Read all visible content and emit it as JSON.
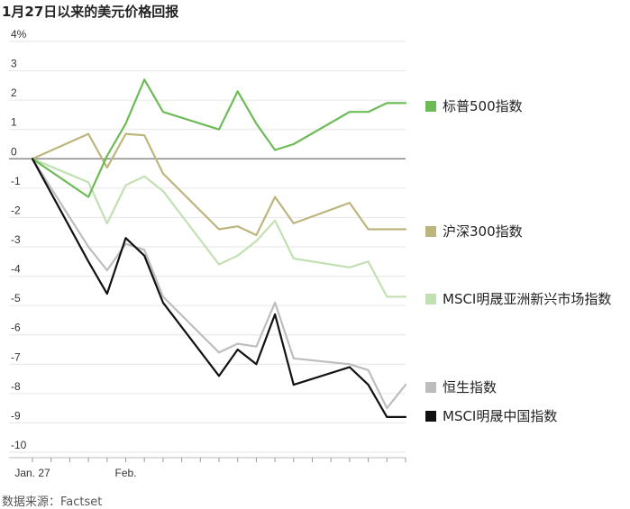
{
  "title": "1月27日以来的美元价格回报",
  "source": "数据来源：Factset",
  "chart_data": {
    "type": "line",
    "title": "1月27日以来的美元价格回报",
    "ylim": [
      -10,
      4
    ],
    "yticks": [
      4,
      3,
      2,
      1,
      0,
      -1,
      -2,
      -3,
      -4,
      -5,
      -6,
      -7,
      -8,
      -9,
      -10
    ],
    "ytick_labels": [
      "4%",
      "3",
      "2",
      "1",
      "0",
      "-1",
      "-2",
      "-3",
      "-4",
      "-5",
      "-6",
      "-7",
      "-8",
      "-9",
      "-10"
    ],
    "xticks": [
      0,
      1,
      2,
      3,
      4,
      5,
      6,
      7,
      8,
      9,
      10,
      11,
      12,
      13,
      14,
      15,
      16,
      17,
      18,
      19,
      20
    ],
    "xtick_labels": [
      {
        "index": 0,
        "label": "Jan. 27"
      },
      {
        "index": 5,
        "label": "Feb."
      }
    ],
    "x": [
      0,
      3,
      4,
      5,
      6,
      7,
      10,
      11,
      12,
      13,
      14,
      17,
      18,
      19,
      20
    ],
    "grid": true,
    "legend": "right",
    "series": [
      {
        "name": "标普500指数",
        "color": "#6dbb57",
        "values": [
          0,
          -1.3,
          0.1,
          1.2,
          2.7,
          1.6,
          1.0,
          2.3,
          1.2,
          0.3,
          0.5,
          1.6,
          1.6,
          1.9,
          1.9
        ]
      },
      {
        "name": "沪深300指数",
        "color": "#bcb57d",
        "values": [
          0,
          0.85,
          -0.3,
          0.85,
          0.8,
          -0.5,
          -2.4,
          -2.3,
          -2.6,
          -1.3,
          -2.2,
          -1.5,
          -2.4,
          -2.4,
          -2.4
        ]
      },
      {
        "name": "MSCI明晟亚洲新兴市场指数",
        "color": "#c3e0b3",
        "values": [
          0,
          -0.8,
          -2.2,
          -0.9,
          -0.6,
          -1.1,
          -3.6,
          -3.3,
          -2.8,
          -2.1,
          -3.4,
          -3.7,
          -3.5,
          -4.7,
          -4.7
        ]
      },
      {
        "name": "恒生指数",
        "color": "#bdbdbd",
        "values": [
          0,
          -3.0,
          -3.8,
          -2.9,
          -3.1,
          -4.7,
          -6.6,
          -6.3,
          -6.4,
          -4.9,
          -6.8,
          -7.0,
          -7.2,
          -8.5,
          -7.7
        ]
      },
      {
        "name": "MSCI明晟中国指数",
        "color": "#111111",
        "values": [
          0,
          -3.5,
          -4.6,
          -2.7,
          -3.3,
          -4.9,
          -7.4,
          -6.5,
          -7.0,
          -5.3,
          -7.7,
          -7.1,
          -7.7,
          -8.8,
          -8.8
        ]
      }
    ]
  }
}
